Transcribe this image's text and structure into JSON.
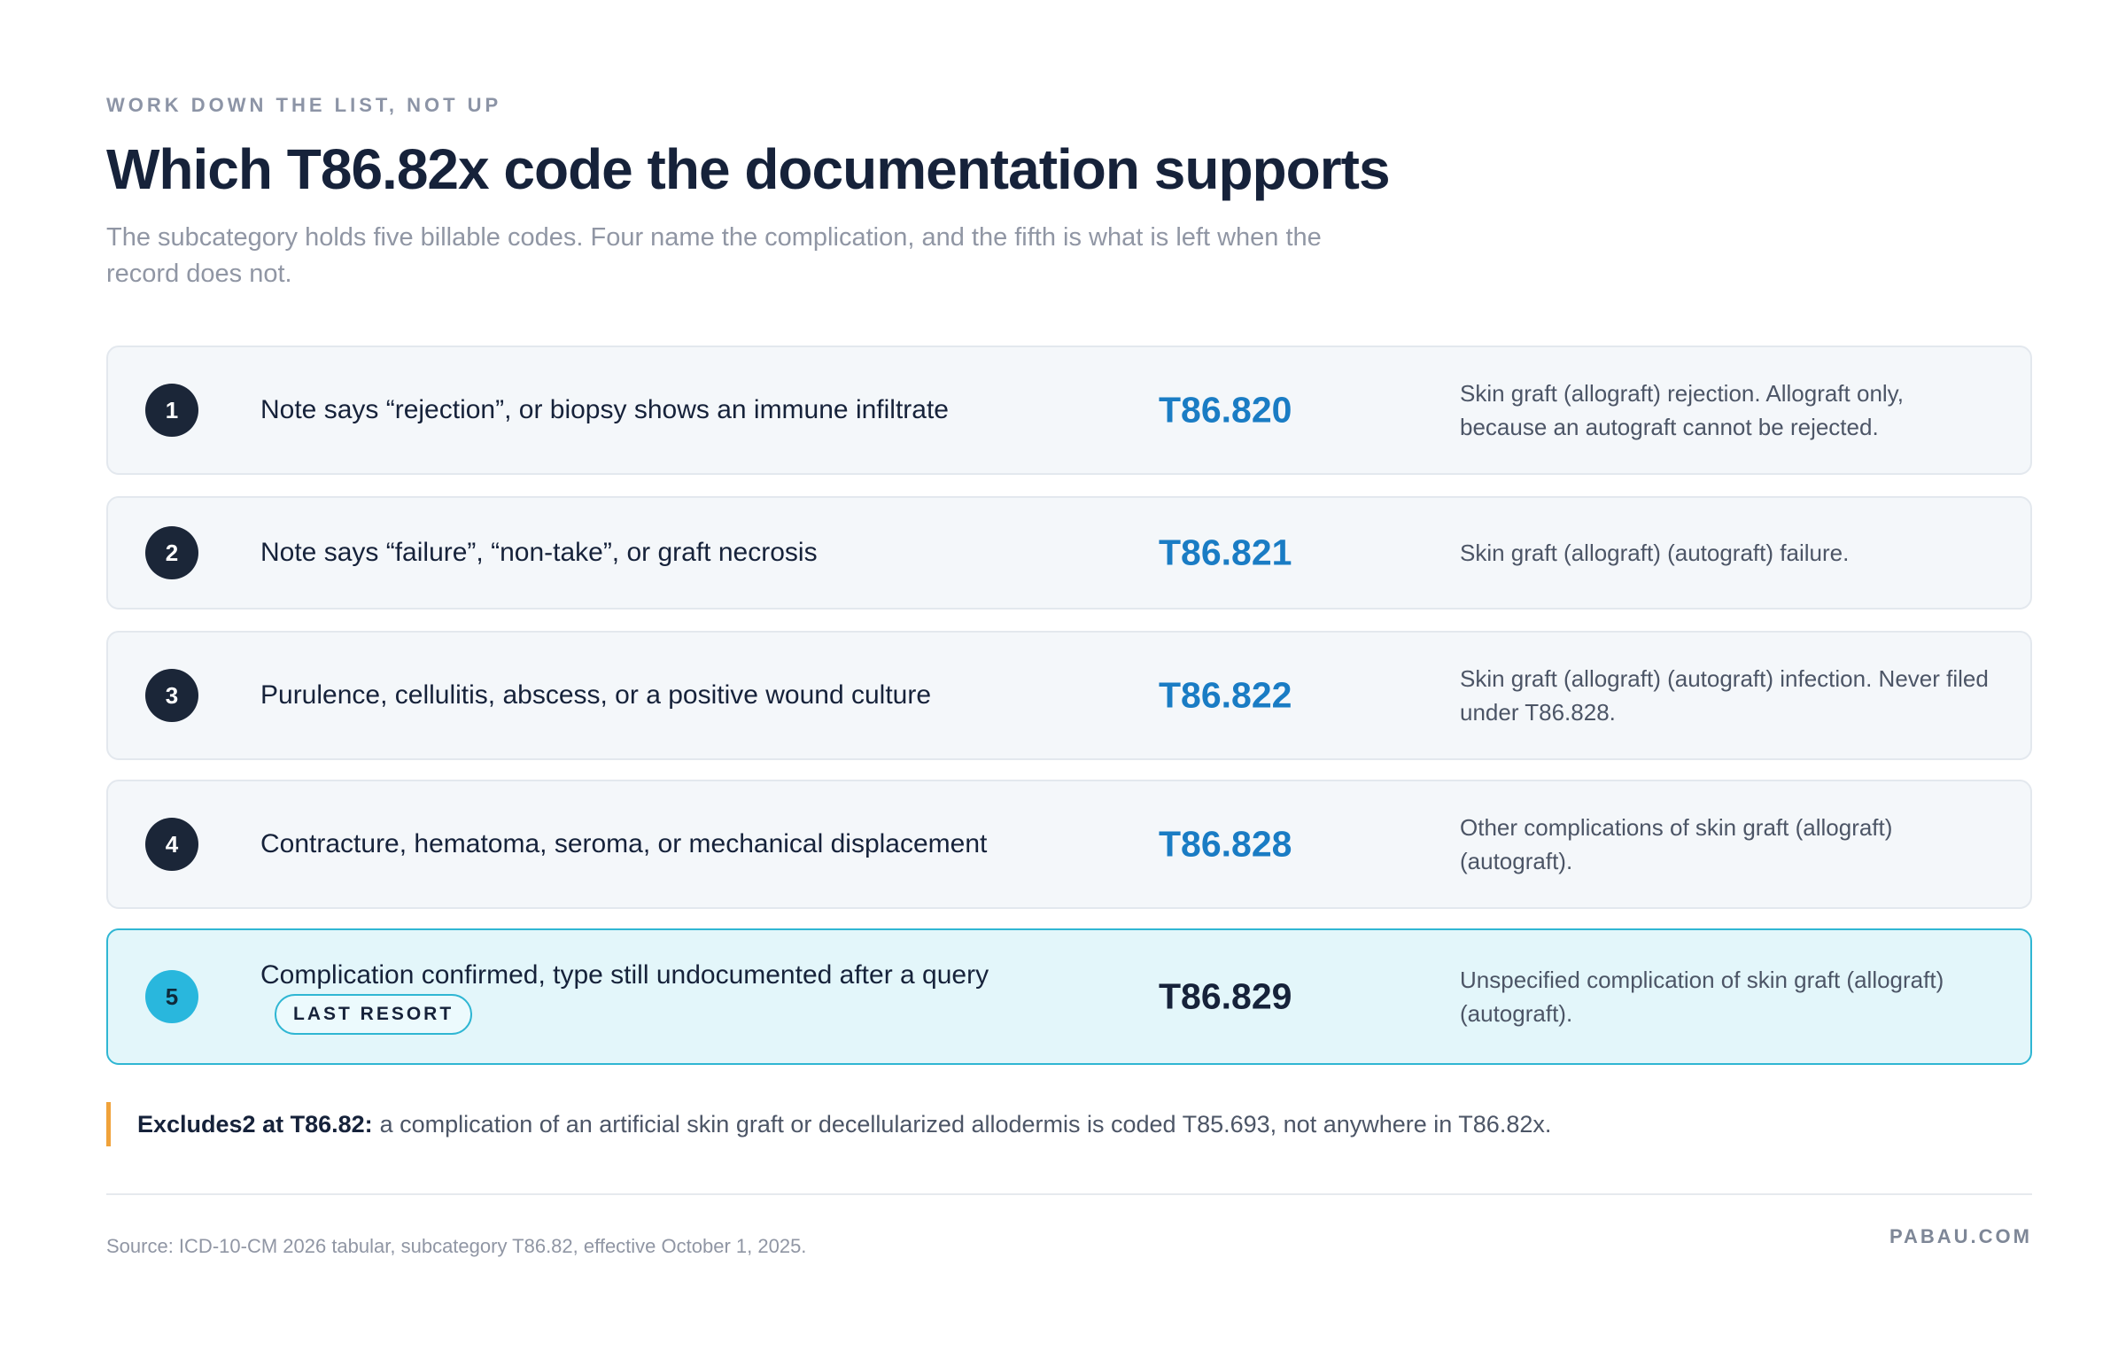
{
  "eyebrow": "WORK DOWN THE LIST, NOT UP",
  "title": "Which T86.82x code the documentation supports",
  "subtitle": "The subcategory holds five billable codes. Four name the complication, and the fifth is what is left when the record does not.",
  "rows": [
    {
      "number": "1",
      "condition": "Note says “rejection”, or biopsy shows an immune infiltrate",
      "code": "T86.820",
      "description": "Skin graft (allograft) rejection. Allograft only, because an autograft cannot be rejected."
    },
    {
      "number": "2",
      "condition": "Note says “failure”, “non-take”, or graft necrosis",
      "code": "T86.821",
      "description": "Skin graft (allograft) (autograft) failure."
    },
    {
      "number": "3",
      "condition": "Purulence, cellulitis, abscess, or a positive wound culture",
      "code": "T86.822",
      "description": "Skin graft (allograft) (autograft) infection. Never filed under T86.828."
    },
    {
      "number": "4",
      "condition": "Contracture, hematoma, seroma, or mechanical displacement",
      "code": "T86.828",
      "description": "Other complications of skin graft (allograft) (autograft)."
    },
    {
      "number": "5",
      "condition": "Complication confirmed, type still undocumented after a query",
      "tag": "LAST RESORT",
      "code": "T86.829",
      "description": "Unspecified complication of skin graft (allograft) (autograft)."
    }
  ],
  "note": {
    "label": "Excludes2 at T86.82:",
    "text": "a complication of an artificial skin graft or decellularized allodermis is coded T85.693, not anywhere in T86.82x."
  },
  "footer": {
    "source": "Source: ICD-10-CM 2026 tabular, subcategory T86.82, effective October 1, 2025.",
    "brand": "PABAU.COM"
  },
  "colors": {
    "accent_blue": "#1a7cc4",
    "highlight_border": "#2fb6d3",
    "highlight_bg": "#e3f6fa",
    "note_bar": "#f0a23a",
    "badge_dark": "#1b2638"
  }
}
